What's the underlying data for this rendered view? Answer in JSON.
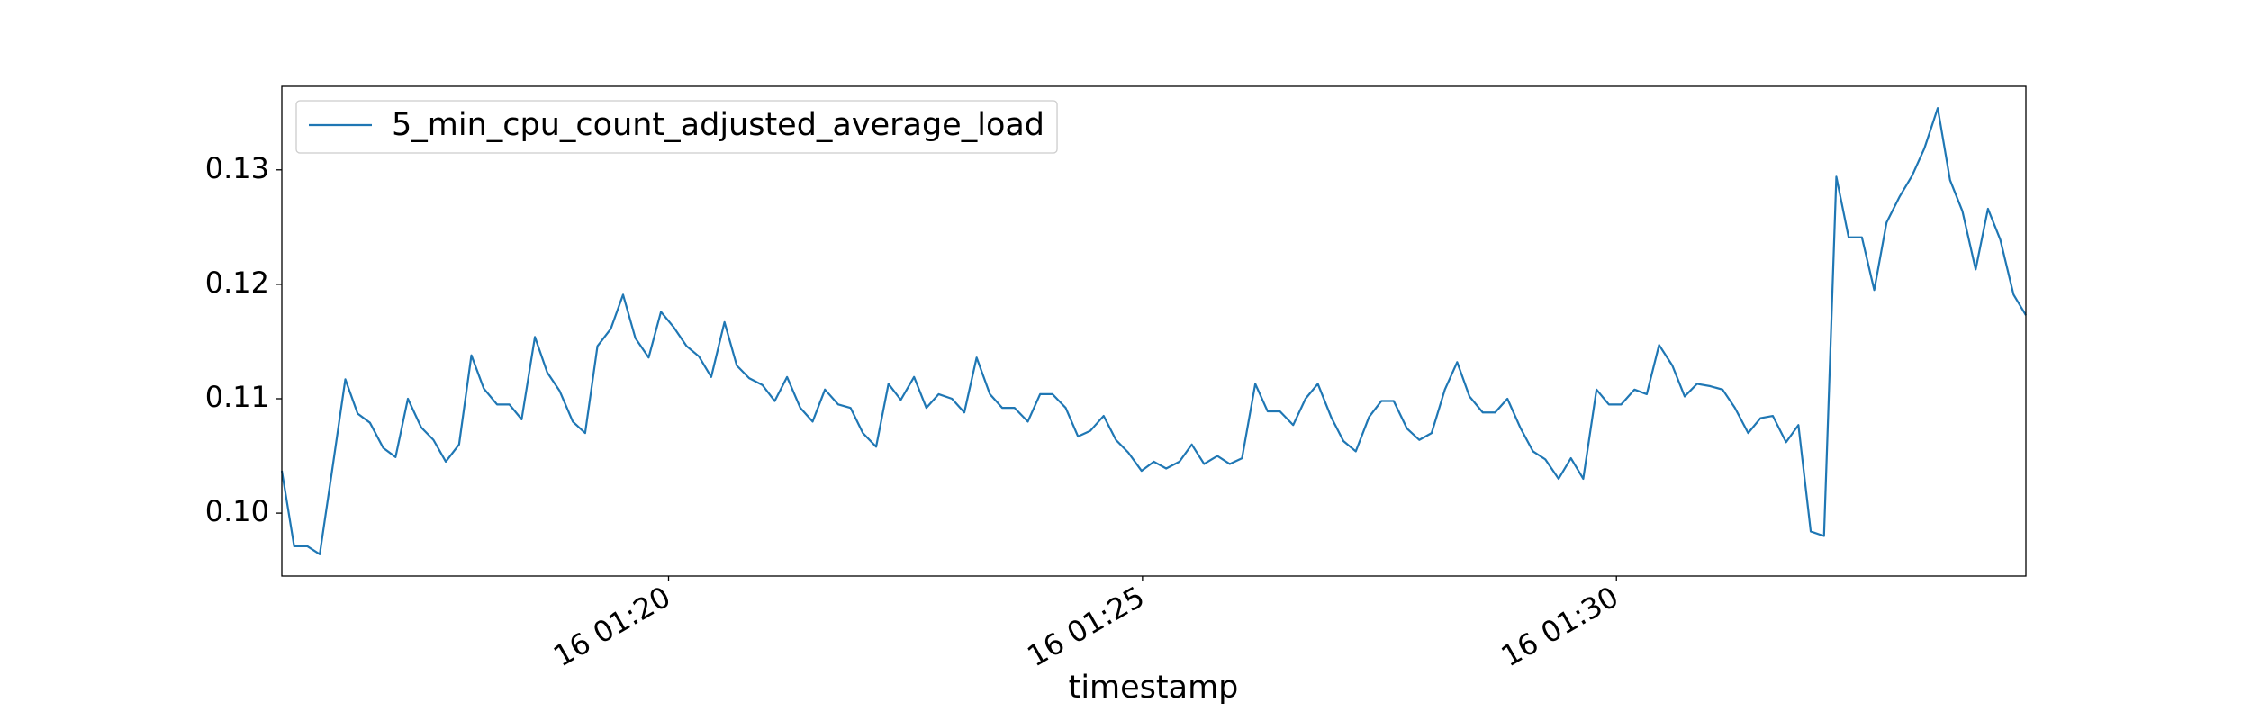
{
  "chart_data": {
    "type": "line",
    "xlabel": "timestamp",
    "legend": "upper left",
    "grid": false,
    "xlim": [
      15.92,
      34.32
    ],
    "ylim": [
      0.0945,
      0.1373
    ],
    "xticks": [
      {
        "value": 20,
        "label": "16 01:20"
      },
      {
        "value": 25,
        "label": "16 01:25"
      },
      {
        "value": 30,
        "label": "16 01:30"
      }
    ],
    "yticks": [
      {
        "value": 0.1,
        "label": "0.10"
      },
      0.11,
      0.12,
      0.13
    ],
    "x": [
      15.92,
      16.05,
      16.19,
      16.32,
      16.45,
      16.59,
      16.72,
      16.85,
      16.99,
      17.12,
      17.25,
      17.39,
      17.52,
      17.65,
      17.79,
      17.92,
      18.05,
      18.19,
      18.32,
      18.45,
      18.59,
      18.72,
      18.85,
      18.99,
      19.12,
      19.25,
      19.39,
      19.52,
      19.65,
      19.79,
      19.92,
      20.05,
      20.19,
      20.32,
      20.45,
      20.59,
      20.72,
      20.85,
      20.99,
      21.12,
      21.25,
      21.39,
      21.52,
      21.65,
      21.79,
      21.92,
      22.05,
      22.19,
      22.32,
      22.45,
      22.59,
      22.72,
      22.85,
      22.99,
      23.12,
      23.25,
      23.39,
      23.52,
      23.65,
      23.79,
      23.92,
      24.05,
      24.19,
      24.32,
      24.45,
      24.59,
      24.72,
      24.85,
      24.99,
      25.12,
      25.25,
      25.39,
      25.52,
      25.65,
      25.79,
      25.92,
      26.05,
      26.19,
      26.32,
      26.45,
      26.59,
      26.72,
      26.85,
      26.99,
      27.12,
      27.25,
      27.39,
      27.52,
      27.65,
      27.79,
      27.92,
      28.05,
      28.19,
      28.32,
      28.45,
      28.59,
      28.72,
      28.85,
      28.99,
      29.12,
      29.25,
      29.39,
      29.52,
      29.65,
      29.79,
      29.92,
      30.05,
      30.19,
      30.32,
      30.45,
      30.59,
      30.72,
      30.85,
      30.99,
      31.12,
      31.25,
      31.39,
      31.52,
      31.65,
      31.79,
      31.92,
      32.05,
      32.19,
      32.32,
      32.45,
      32.59,
      32.72,
      32.85,
      32.99,
      33.12,
      33.25,
      33.39,
      33.52,
      33.65,
      33.79,
      33.92,
      34.05,
      34.19,
      34.32
    ],
    "series": [
      {
        "name": "5_min_cpu_count_adjusted_average_load",
        "color": "#1f77b4",
        "values": [
          0.1037,
          0.0971,
          0.0971,
          0.0964,
          0.1037,
          0.1117,
          0.1087,
          0.1079,
          0.1057,
          0.1049,
          0.11,
          0.1075,
          0.1064,
          0.1045,
          0.106,
          0.1138,
          0.1109,
          0.1095,
          0.1095,
          0.1082,
          0.1154,
          0.1123,
          0.1107,
          0.108,
          0.107,
          0.1146,
          0.1161,
          0.1191,
          0.1153,
          0.1136,
          0.1176,
          0.1163,
          0.1146,
          0.1137,
          0.1119,
          0.1167,
          0.1129,
          0.1118,
          0.1112,
          0.1098,
          0.1119,
          0.1092,
          0.108,
          0.1108,
          0.1095,
          0.1092,
          0.107,
          0.1058,
          0.1113,
          0.1099,
          0.1119,
          0.1092,
          0.1104,
          0.11,
          0.1088,
          0.1136,
          0.1104,
          0.1092,
          0.1092,
          0.108,
          0.1104,
          0.1104,
          0.1092,
          0.1067,
          0.1072,
          0.1085,
          0.1064,
          0.1053,
          0.1037,
          0.1045,
          0.1039,
          0.1045,
          0.106,
          0.1043,
          0.105,
          0.1043,
          0.1048,
          0.1113,
          0.1089,
          0.1089,
          0.1077,
          0.11,
          0.1113,
          0.1084,
          0.1063,
          0.1054,
          0.1084,
          0.1098,
          0.1098,
          0.1074,
          0.1064,
          0.107,
          0.1108,
          0.1132,
          0.1102,
          0.1088,
          0.1088,
          0.11,
          0.1074,
          0.1054,
          0.1047,
          0.103,
          0.1048,
          0.103,
          0.1108,
          0.1095,
          0.1095,
          0.1108,
          0.1104,
          0.1147,
          0.1129,
          0.1102,
          0.1113,
          0.1111,
          0.1108,
          0.1092,
          0.107,
          0.1083,
          0.1085,
          0.1062,
          0.1077,
          0.0984,
          0.098,
          0.1294,
          0.1241,
          0.1241,
          0.1195,
          0.1254,
          0.1277,
          0.1295,
          0.1319,
          0.1354,
          0.1291,
          0.1264,
          0.1213,
          0.1266,
          0.1239,
          0.1191,
          0.1173
        ]
      }
    ]
  }
}
